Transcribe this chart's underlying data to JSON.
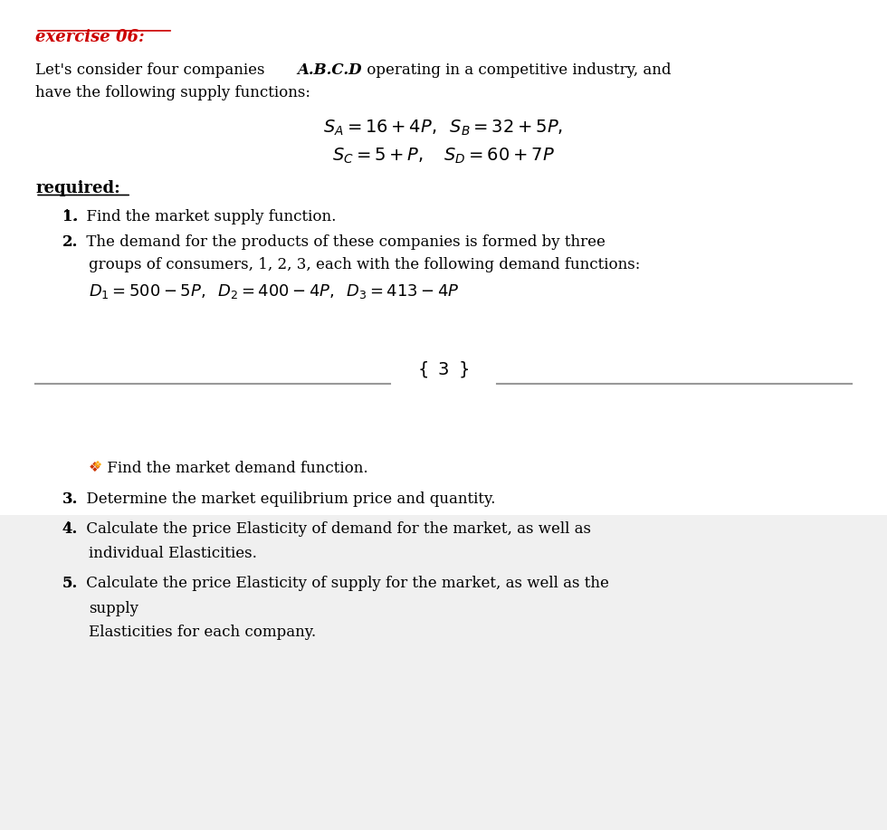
{
  "background_color": "#ffffff",
  "page_bg_lower": "#f0f0f0",
  "title_text": "exercise 06:",
  "title_color": "#cc0000",
  "title_fontsize": 13,
  "body_fontsize": 12,
  "math_fontsize": 13,
  "line1": "Let's consider four companies ",
  "line1_bold": "A.B.C.D",
  "line1_rest": " operating in a competitive industry, and",
  "line2": "have the following supply functions:",
  "eq1": "S_{A} = 16 + 4P,  \\; S_{B} = 32 + 5P,",
  "eq2": "S_{C} = 5 + P, \\quad S_{D} = 60 + 7P",
  "required_label": "required:",
  "item1": "Find the market supply function.",
  "item2_line1": "The demand for the products of these companies is formed by three",
  "item2_line2": "groups of consumers, 1, 2, 3, each with the following demand functions:",
  "item2_eq": "D_{1} = 500 - 5P,  \\; D_{2} = 400 - 4P, \\;  D_{3} = 413 - 4P",
  "page_number": "3",
  "find_icon": "❖",
  "find_text": " Find the market demand function.",
  "item3": "Determine the market equilibrium price and quantity.",
  "item4_line1": "Calculate the price Elasticity of demand for the market, as well as",
  "item4_line2": "individual Elasticities.",
  "item5_line1": "Calculate the price Elasticity of supply for the market, as well as the",
  "item5_line2": "supply",
  "item5_line3": "Elasticities for each company."
}
